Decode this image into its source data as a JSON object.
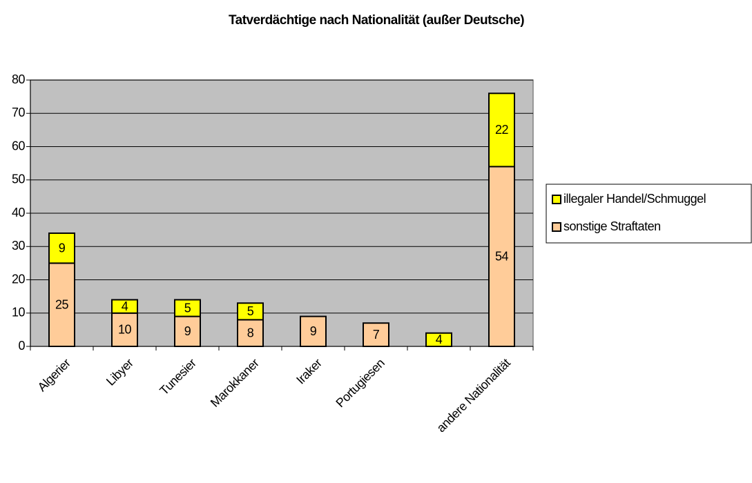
{
  "chart_data": {
    "type": "stacked_bar",
    "title": "Tatverdächtige nach Nationalität (außer Deutsche)",
    "categories": [
      "Algerier",
      "Libyer",
      "Tunesier",
      "Marokkaner",
      "Iraker",
      "Portugiesen",
      null,
      "andere Nationalität"
    ],
    "series": [
      {
        "name": "sonstige Straftaten",
        "color": "#FFCC99",
        "values": [
          25,
          10,
          9,
          8,
          9,
          7,
          null,
          54
        ]
      },
      {
        "name": "illegaler Handel/Schmuggel",
        "color": "#FFFF00",
        "values": [
          9,
          4,
          5,
          5,
          null,
          null,
          4,
          22
        ]
      }
    ],
    "ylim": [
      0,
      80
    ],
    "yticks": [
      0,
      10,
      20,
      30,
      40,
      50,
      60,
      70,
      80
    ],
    "grid": true,
    "plot_background": "#C0C0C0",
    "legend": "right"
  }
}
